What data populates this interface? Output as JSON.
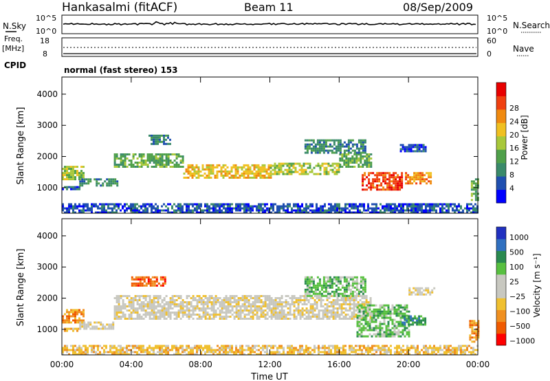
{
  "header": {
    "station": "Hankasalmi (fitACF)",
    "beam": "Beam 11",
    "date": "08/Sep/2009"
  },
  "noise_panel": {
    "left_label": "N.Sky",
    "left_ticks": [
      "10^5",
      "10^0"
    ],
    "right_label": "N.Search",
    "right_ticks": [
      "10^5",
      "10^0"
    ]
  },
  "freq_panel": {
    "left_label_1": "Freq.",
    "left_label_2": "[MHz]",
    "left_ticks": [
      "18",
      "8"
    ],
    "right_label": "Nave",
    "right_ticks": [
      "60",
      "0"
    ]
  },
  "cpid": {
    "label": "CPID",
    "value": "normal (fast stereo) 153"
  },
  "colors": {
    "power": [
      "#0000ff",
      "#1f4fb0",
      "#3a8a6a",
      "#4fa04a",
      "#a8c83a",
      "#f0c020",
      "#f08a10",
      "#f04010",
      "#e80000"
    ],
    "velocity": [
      "#ff0000",
      "#f05a00",
      "#f09020",
      "#f0c030",
      "#c8c8c0",
      "#c8c8c0",
      "#58c040",
      "#2a8a50",
      "#3070c0",
      "#2030c0"
    ]
  },
  "chart_data": [
    {
      "type": "heatmap",
      "name": "power",
      "ylabel": "Slant Range [km]",
      "yticks": [
        "1000",
        "2000",
        "3000",
        "4000"
      ],
      "ylim": [
        180,
        4550
      ],
      "xlim": [
        0,
        24
      ],
      "colorbar_label": "Power [dB]",
      "colorbar_ticks": [
        "4",
        "8",
        "12",
        "16",
        "20",
        "24",
        "28"
      ],
      "bands": [
        {
          "t0": 0.0,
          "t1": 1.3,
          "r0": 1250,
          "r1": 1700,
          "level": 4
        },
        {
          "t0": 0.0,
          "t1": 1.0,
          "r0": 930,
          "r1": 1050,
          "level": 1
        },
        {
          "t0": 1.0,
          "t1": 3.2,
          "r0": 1100,
          "r1": 1300,
          "level": 2
        },
        {
          "t0": 3.0,
          "t1": 7.0,
          "r0": 1700,
          "r1": 2100,
          "level": 3
        },
        {
          "t0": 7.0,
          "t1": 12.0,
          "r0": 1350,
          "r1": 1750,
          "level": 5
        },
        {
          "t0": 12.0,
          "t1": 16.0,
          "r0": 1450,
          "r1": 1800,
          "level": 4
        },
        {
          "t0": 16.0,
          "t1": 17.8,
          "r0": 1650,
          "r1": 2100,
          "level": 3
        },
        {
          "t0": 14.0,
          "t1": 17.5,
          "r0": 2150,
          "r1": 2550,
          "level": 2
        },
        {
          "t0": 17.3,
          "t1": 19.6,
          "r0": 950,
          "r1": 1500,
          "level": 7
        },
        {
          "t0": 19.8,
          "t1": 21.3,
          "r0": 1150,
          "r1": 1500,
          "level": 6
        },
        {
          "t0": 19.5,
          "t1": 21.0,
          "r0": 2150,
          "r1": 2400,
          "level": 1
        },
        {
          "t0": 23.6,
          "t1": 24.0,
          "r0": 600,
          "r1": 1300,
          "level": 3
        },
        {
          "t0": 5.0,
          "t1": 6.3,
          "r0": 2400,
          "r1": 2700,
          "level": 2
        },
        {
          "t0": 0.0,
          "t1": 24.0,
          "r0": 180,
          "r1": 500,
          "level": 1
        }
      ]
    },
    {
      "type": "heatmap",
      "name": "velocity",
      "ylabel": "Slant Range [km]",
      "yticks": [
        "1000",
        "2000",
        "3000",
        "4000"
      ],
      "ylim": [
        180,
        4550
      ],
      "xlim": [
        0,
        24
      ],
      "colorbar_label": "Velocity [m s⁻¹]",
      "colorbar_ticks": [
        "1000",
        "500",
        "100",
        "25",
        "−25",
        "−100",
        "−500",
        "−1000"
      ],
      "bands": [
        {
          "t0": 0.0,
          "t1": 1.3,
          "r0": 1250,
          "r1": 1650,
          "level": 2
        },
        {
          "t0": 0.0,
          "t1": 1.0,
          "r0": 930,
          "r1": 1050,
          "level": 3
        },
        {
          "t0": 1.0,
          "t1": 3.0,
          "r0": 1050,
          "r1": 1250,
          "level": 4
        },
        {
          "t0": 3.0,
          "t1": 17.8,
          "r0": 1350,
          "r1": 2100,
          "level": 4
        },
        {
          "t0": 4.0,
          "t1": 6.0,
          "r0": 2400,
          "r1": 2700,
          "level": 1
        },
        {
          "t0": 14.0,
          "t1": 17.5,
          "r0": 2100,
          "r1": 2700,
          "level": 6
        },
        {
          "t0": 17.0,
          "t1": 20.0,
          "r0": 800,
          "r1": 1800,
          "level": 6
        },
        {
          "t0": 19.6,
          "t1": 21.0,
          "r0": 1150,
          "r1": 1450,
          "level": 7
        },
        {
          "t0": 20.0,
          "t1": 21.5,
          "r0": 2100,
          "r1": 2350,
          "level": 4
        },
        {
          "t0": 23.5,
          "t1": 24.0,
          "r0": 600,
          "r1": 1300,
          "level": 2
        },
        {
          "t0": 0.0,
          "t1": 24.0,
          "r0": 180,
          "r1": 500,
          "level": 3
        }
      ]
    }
  ],
  "xaxis": {
    "label": "Time UT",
    "ticks": [
      "00:00",
      "04:00",
      "08:00",
      "12:00",
      "16:00",
      "20:00",
      "00:00"
    ]
  }
}
